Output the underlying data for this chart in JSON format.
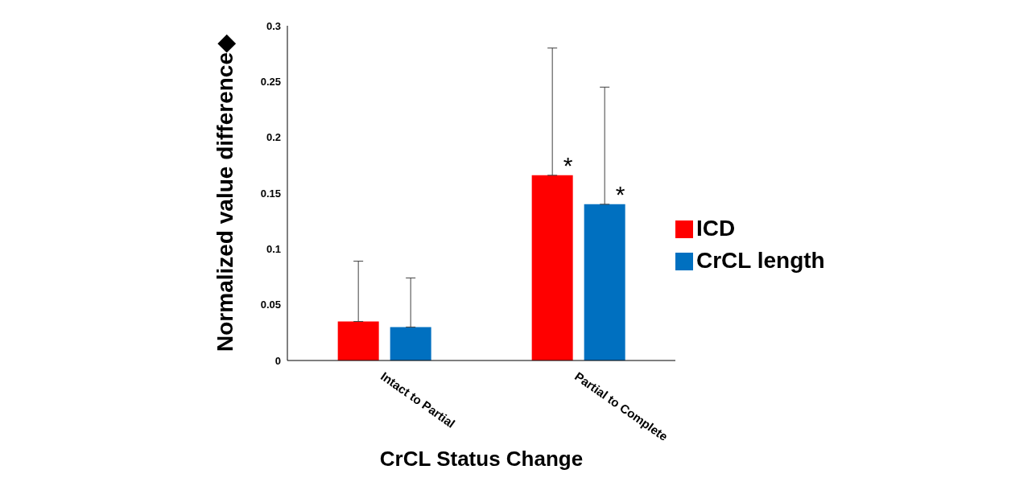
{
  "chart_data": {
    "type": "bar",
    "xlabel": "CrCL Status Change",
    "ylabel": "Normalized value difference◆",
    "categories": [
      "Intact to Partial",
      "Partial to Complete"
    ],
    "series": [
      {
        "name": "ICD",
        "color": "#ff0000",
        "values": [
          0.035,
          0.166
        ],
        "errors": [
          [
            0.035,
            0.089
          ],
          [
            0.166,
            0.28
          ]
        ]
      },
      {
        "name": "CrCL length",
        "color": "#0070c0",
        "values": [
          0.03,
          0.14
        ],
        "errors": [
          [
            0.03,
            0.074
          ],
          [
            0.14,
            0.245
          ]
        ]
      }
    ],
    "ylim": [
      0,
      0.3
    ],
    "yticks": [
      0,
      0.05,
      0.1,
      0.15,
      0.2,
      0.25,
      0.3
    ],
    "grid": false,
    "legend": "right",
    "annotations": [
      "*",
      "*"
    ]
  }
}
